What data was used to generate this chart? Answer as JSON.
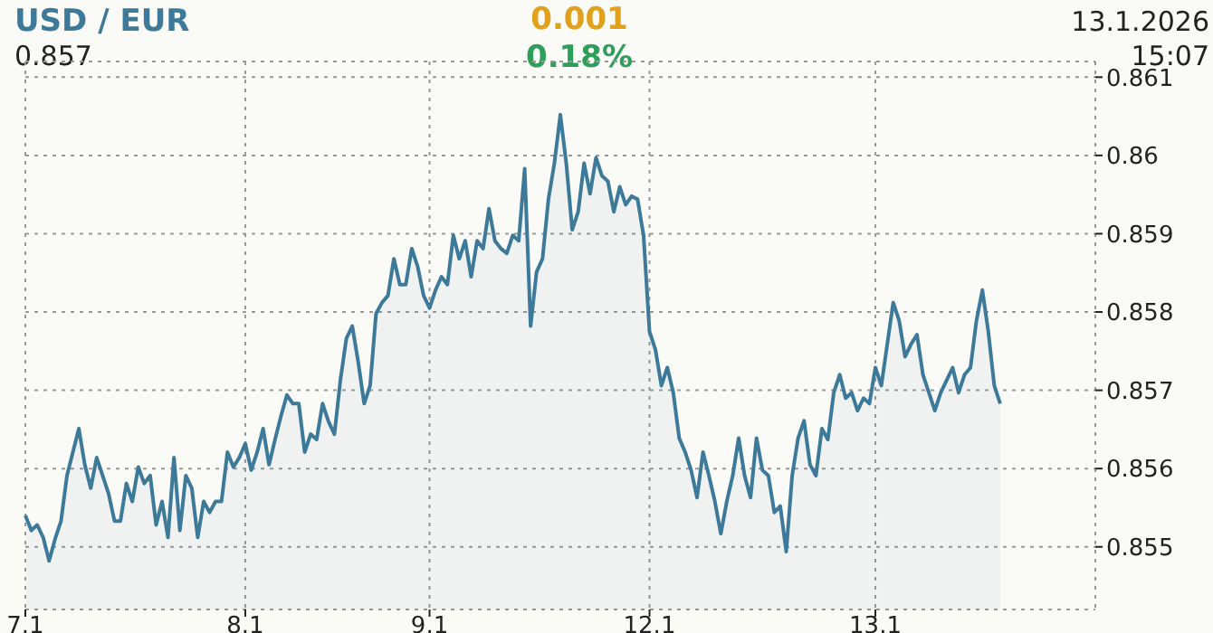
{
  "chart_data": {
    "type": "area",
    "title": "USD / EUR",
    "annotations": [
      "0.857",
      "0.001",
      "0.18%",
      "13.1.2026",
      "15:07"
    ],
    "categories": [
      "7.1",
      null,
      null,
      null,
      null,
      null,
      null,
      null,
      null,
      null,
      null,
      null,
      null,
      null,
      null,
      null,
      null,
      null,
      null,
      null,
      null,
      null,
      null,
      null,
      null,
      null,
      null,
      null,
      null,
      null,
      null,
      null,
      null,
      null,
      null,
      null,
      null,
      "8.1",
      null,
      null,
      null,
      null,
      null,
      null,
      null,
      null,
      null,
      null,
      null,
      null,
      null,
      null,
      null,
      null,
      null,
      null,
      null,
      null,
      null,
      null,
      null,
      null,
      null,
      null,
      null,
      null,
      null,
      null,
      "9.1",
      null,
      null,
      null,
      null,
      null,
      null,
      null,
      null,
      null,
      null,
      null,
      null,
      null,
      null,
      null,
      null,
      null,
      null,
      null,
      null,
      null,
      null,
      null,
      null,
      null,
      null,
      null,
      null,
      null,
      null,
      null,
      null,
      null,
      null,
      null,
      null,
      "12.1",
      null,
      null,
      null,
      null,
      null,
      null,
      null,
      null,
      null,
      null,
      null,
      null,
      null,
      null,
      null,
      null,
      null,
      null,
      null,
      null,
      null,
      null,
      null,
      null,
      null,
      null,
      null,
      null,
      null,
      null,
      null,
      null,
      null,
      null,
      null,
      null,
      null,
      "13.1",
      null,
      null,
      null,
      null,
      null,
      null,
      null,
      null,
      null,
      null,
      null,
      null,
      null,
      null,
      null,
      null,
      null,
      null,
      null,
      null,
      null,
      null,
      null,
      null,
      null,
      null,
      null,
      null,
      null,
      null,
      null,
      null,
      null,
      null,
      null,
      null,
      null
    ],
    "ylim": [
      0.8542,
      0.8612
    ],
    "yticks": [
      0.855,
      0.856,
      0.857,
      0.858,
      0.859,
      0.86,
      0.861
    ],
    "grid": true,
    "series": [
      {
        "color": "#3d7a99",
        "values": [
          0.8554,
          0.85521,
          0.85528,
          0.85512,
          0.85482,
          0.8551,
          0.85533,
          0.85591,
          0.85621,
          0.85651,
          0.85605,
          0.85575,
          0.85614,
          0.85591,
          0.85568,
          0.85533,
          0.85533,
          0.85581,
          0.85558,
          0.85602,
          0.85581,
          0.85591,
          0.85528,
          0.85558,
          0.85512,
          0.85614,
          0.85521,
          0.85591,
          0.85575,
          0.85512,
          0.85558,
          0.85544,
          0.85558,
          0.85558,
          0.85621,
          0.85602,
          0.85614,
          0.85632,
          0.85598,
          0.85621,
          0.85651,
          0.85605,
          0.85637,
          0.85667,
          0.85694,
          0.85683,
          0.85683,
          0.85621,
          0.85644,
          0.85637,
          0.85683,
          0.8566,
          0.85644,
          0.85713,
          0.85766,
          0.85782,
          0.85736,
          0.85683,
          0.85706,
          0.85798,
          0.85812,
          0.85821,
          0.85868,
          0.85835,
          0.85835,
          0.85881,
          0.85858,
          0.85821,
          0.85805,
          0.85828,
          0.85845,
          0.85835,
          0.85898,
          0.85868,
          0.85891,
          0.85845,
          0.85891,
          0.85881,
          0.85932,
          0.85891,
          0.85881,
          0.85875,
          0.85898,
          0.85891,
          0.85983,
          0.85782,
          0.85851,
          0.85868,
          0.85944,
          0.8599,
          0.86052,
          0.8599,
          0.85905,
          0.85928,
          0.8599,
          0.85951,
          0.85997,
          0.85974,
          0.85967,
          0.85928,
          0.8596,
          0.85937,
          0.85948,
          0.85944,
          0.85898,
          0.85775,
          0.85752,
          0.85706,
          0.85729,
          0.85697,
          0.85639,
          0.85621,
          0.85598,
          0.85563,
          0.85621,
          0.85591,
          0.85558,
          0.85517,
          0.85558,
          0.85591,
          0.85639,
          0.85591,
          0.85563,
          0.85639,
          0.85598,
          0.85591,
          0.85544,
          0.85552,
          0.85494,
          0.85591,
          0.85639,
          0.85661,
          0.85605,
          0.85591,
          0.85651,
          0.85637,
          0.85697,
          0.8572,
          0.8569,
          0.85697,
          0.85674,
          0.8569,
          0.85683,
          0.85729,
          0.85706,
          0.85759,
          0.85812,
          0.85789,
          0.85743,
          0.85759,
          0.85771,
          0.8572,
          0.85697,
          0.85674,
          0.85697,
          0.85713,
          0.85729,
          0.85697,
          0.8572,
          0.85729,
          0.85789,
          0.85828,
          0.85775,
          0.85706,
          0.85683,
          null,
          null,
          null,
          null,
          null,
          null,
          null,
          null,
          null,
          null,
          null,
          null,
          null,
          null,
          null,
          null
        ]
      }
    ]
  }
}
